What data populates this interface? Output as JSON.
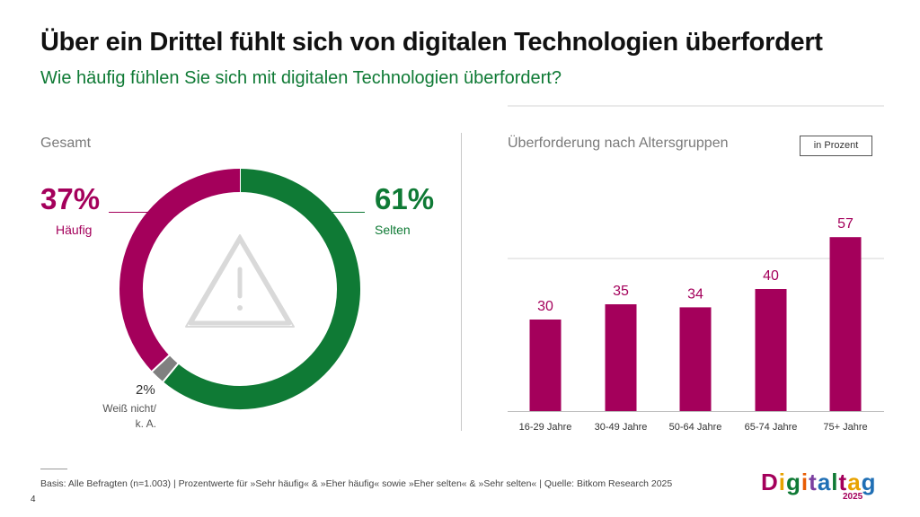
{
  "title": "Über ein Drittel fühlt sich von digitalen Technologien überfordert",
  "subtitle": "Wie häufig fühlen Sie sich mit digitalen Technologien überfordert?",
  "left_section": {
    "label": "Gesamt"
  },
  "right_section": {
    "label": "Überforderung nach Altersgruppen",
    "unit": "in Prozent"
  },
  "donut": {
    "haeufig": {
      "value_text": "37%",
      "label": "Häufig"
    },
    "selten": {
      "value_text": "61%",
      "label": "Selten"
    },
    "weiss_nicht": {
      "value_text": "2%",
      "label_line1": "Weiß nicht/",
      "label_line2": "k. A."
    }
  },
  "footnote": "Basis: Alle Befragten (n=1.003) | Prozentwerte für »Sehr häufig« & »Eher häufig« sowie »Eher selten« & »Sehr selten« | Quelle: Bitkom Research 2025",
  "page_number": "4",
  "logo": {
    "letters": [
      "D",
      "i",
      "g",
      "i",
      "t",
      "a",
      "l",
      "t",
      "a",
      "g"
    ],
    "year": "2025"
  },
  "colors": {
    "magenta": "#a4005b",
    "green": "#0f7a35",
    "gray": "#808080",
    "warning_icon": "#d9d9d9",
    "logo": [
      "#a4005b",
      "#e8a200",
      "#0f7a35",
      "#e85d04",
      "#7b3fa0",
      "#1f6fb5",
      "#0f7a35",
      "#a4005b",
      "#e8a200",
      "#1f6fb5"
    ]
  },
  "chart_data": [
    {
      "type": "pie",
      "title": "Gesamt",
      "categories": [
        "Selten",
        "Weiß nicht/k. A.",
        "Häufig"
      ],
      "values": [
        61,
        2,
        37
      ]
    },
    {
      "type": "bar",
      "title": "Überforderung nach Altersgruppen",
      "unit": "in Prozent",
      "categories": [
        "16-29 Jahre",
        "30-49 Jahre",
        "50-64 Jahre",
        "65-74 Jahre",
        "75+ Jahre"
      ],
      "values": [
        30,
        35,
        34,
        40,
        57
      ],
      "ylim": [
        0,
        100
      ],
      "grid": true
    }
  ]
}
